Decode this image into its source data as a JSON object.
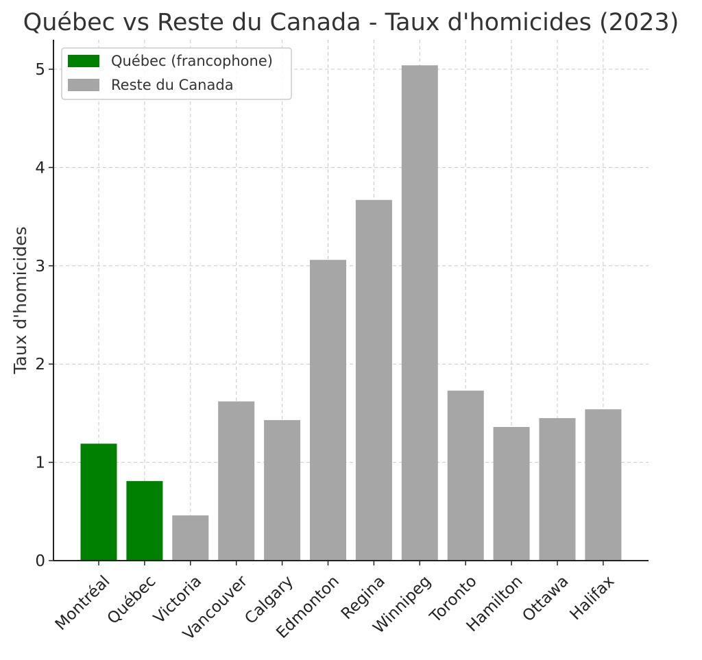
{
  "chart_data": {
    "type": "bar",
    "title": "Québec vs Reste du Canada - Taux d'homicides (2023)",
    "xlabel": "",
    "ylabel": "Taux d'homicides",
    "ylim": [
      0,
      5.3
    ],
    "yticks": [
      0,
      1,
      2,
      3,
      4,
      5
    ],
    "grid": true,
    "legend_position": "top-left",
    "categories": [
      "Montréal",
      "Québec",
      "Victoria",
      "Vancouver",
      "Calgary",
      "Edmonton",
      "Regina",
      "Winnipeg",
      "Toronto",
      "Hamilton",
      "Ottawa",
      "Halifax"
    ],
    "values": [
      1.19,
      0.81,
      0.46,
      1.62,
      1.43,
      3.06,
      3.67,
      5.04,
      1.73,
      1.36,
      1.45,
      1.54
    ],
    "groups": [
      "quebec",
      "quebec",
      "reste",
      "reste",
      "reste",
      "reste",
      "reste",
      "reste",
      "reste",
      "reste",
      "reste",
      "reste"
    ],
    "legend": [
      {
        "key": "quebec",
        "label": "Québec (francophone)",
        "color": "#008000"
      },
      {
        "key": "reste",
        "label": "Reste du Canada",
        "color": "#a6a6a6"
      }
    ]
  }
}
